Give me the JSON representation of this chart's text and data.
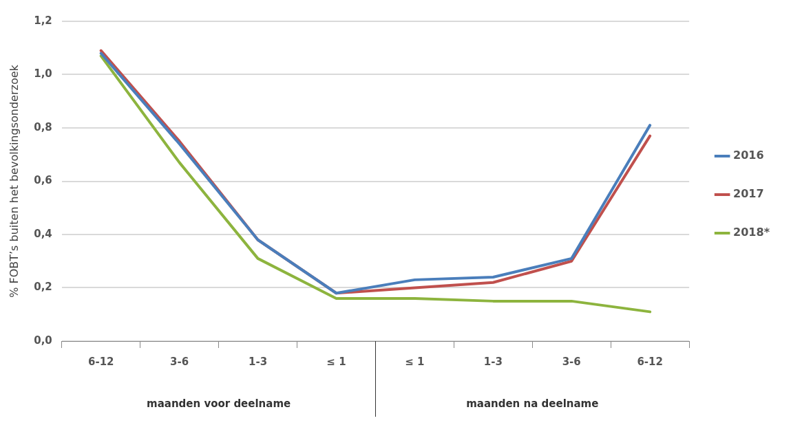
{
  "chart_data": {
    "type": "line",
    "ylabel": "% FOBT’s buiten het bevolkingsonderzoek",
    "categories": [
      "6-12",
      "3-6",
      "1-3",
      "≤ 1",
      "≤ 1",
      "1-3",
      "3-6",
      "6-12"
    ],
    "series": [
      {
        "name": "2016",
        "color": "#4a7ebb",
        "values": [
          1.08,
          0.74,
          0.38,
          0.18,
          0.23,
          0.24,
          0.31,
          0.81
        ]
      },
      {
        "name": "2017",
        "color": "#c0504d",
        "values": [
          1.09,
          0.75,
          0.38,
          0.18,
          0.2,
          0.22,
          0.3,
          0.77
        ]
      },
      {
        "name": "2018*",
        "color": "#8db43e",
        "values": [
          1.07,
          0.67,
          0.31,
          0.16,
          0.16,
          0.15,
          0.15,
          0.11
        ]
      }
    ],
    "annotations": [
      "maanden voor deelname",
      "maanden na deelname"
    ],
    "ylim": [
      0,
      1.2
    ],
    "yticks": [
      {
        "value": 0,
        "label": "0,0"
      },
      {
        "value": 0.2,
        "label": "0,2"
      },
      {
        "value": 0.4,
        "label": "0,4"
      },
      {
        "value": 0.6,
        "label": "0,6"
      },
      {
        "value": 0.8,
        "label": "0,8"
      },
      {
        "value": 1.0,
        "label": "1,0"
      },
      {
        "value": 1.2,
        "label": "1,2"
      }
    ],
    "grid": "y",
    "legend": "right",
    "marker": "none",
    "line_style": "solid"
  }
}
